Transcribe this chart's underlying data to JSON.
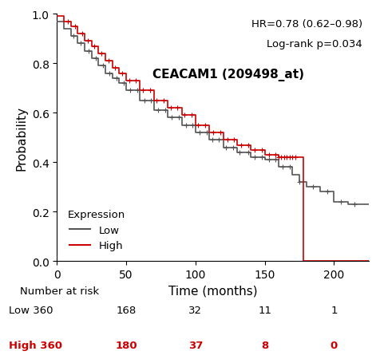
{
  "title": "CEACAM1 (209498_at)",
  "hr_text": "HR=0.78 (0.62–0.98)",
  "logrank_text": "Log-rank p=0.034",
  "xlabel": "Time (months)",
  "ylabel": "Probability",
  "xlim": [
    0,
    225
  ],
  "ylim": [
    0,
    1.0
  ],
  "xticks": [
    0,
    50,
    100,
    150,
    200
  ],
  "yticks": [
    0.0,
    0.2,
    0.4,
    0.6,
    0.8,
    1.0
  ],
  "low_color": "#555555",
  "high_color": "#cc0000",
  "legend_title": "Expression",
  "legend_labels": [
    "Low",
    "High"
  ],
  "number_at_risk_label": "Number at risk",
  "low_label": "Low 360",
  "high_label": "High 360",
  "low_at_risk": [
    "168",
    "32",
    "11",
    "1"
  ],
  "high_at_risk": [
    "180",
    "37",
    "8",
    "0"
  ],
  "at_risk_times": [
    0,
    50,
    100,
    150,
    200
  ],
  "figsize": [
    4.76,
    4.56
  ],
  "dpi": 100
}
